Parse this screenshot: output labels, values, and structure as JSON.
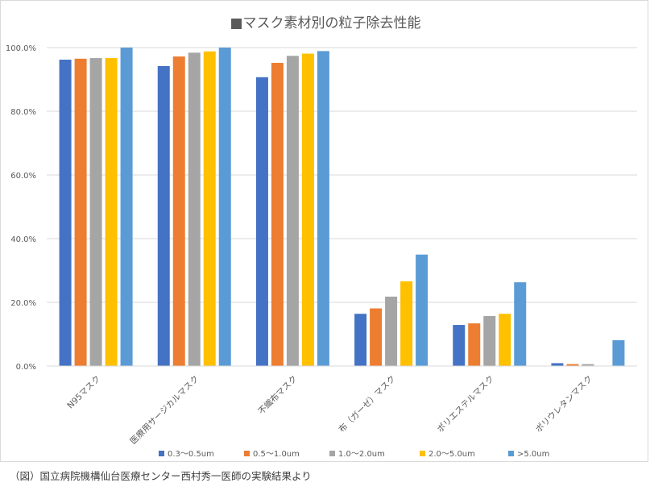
{
  "chart_data": {
    "type": "bar",
    "title": "■マスク素材別の粒子除去性能",
    "categories": [
      "N95マスク",
      "医療用サージカルマスク",
      "不織布マスク",
      "布（ガーゼ）マスク",
      "ポリエステルマスク",
      "ポリウレタンマスク"
    ],
    "series": [
      {
        "name": "0.3〜0.5um",
        "color": "#4472c4",
        "values": [
          96.2,
          94.2,
          90.7,
          16.4,
          12.9,
          0.9
        ]
      },
      {
        "name": "0.5〜1.0um",
        "color": "#ed7d31",
        "values": [
          96.5,
          97.2,
          95.2,
          18.1,
          13.4,
          0.6
        ]
      },
      {
        "name": "1.0〜2.0um",
        "color": "#a5a5a5",
        "values": [
          96.7,
          98.4,
          97.4,
          21.8,
          15.7,
          0.6
        ]
      },
      {
        "name": "2.0〜5.0um",
        "color": "#ffc000",
        "values": [
          96.7,
          98.8,
          98.1,
          26.6,
          16.4,
          0.0
        ]
      },
      {
        "name": ">5.0um",
        "color": "#5b9bd5",
        "values": [
          100.0,
          100.0,
          98.9,
          35.0,
          26.3,
          8.1
        ]
      }
    ],
    "ylim": [
      0,
      100
    ],
    "yticks": [
      0,
      20,
      40,
      60,
      80,
      100
    ],
    "ytick_labels": [
      "0.0%",
      "20.0%",
      "40.0%",
      "60.0%",
      "80.0%",
      "100.0%"
    ],
    "xlabel": "",
    "ylabel": "",
    "grid": true,
    "legend_position": "bottom"
  },
  "caption": "（図）国立病院機構仙台医療センター西村秀一医師の実験結果より"
}
